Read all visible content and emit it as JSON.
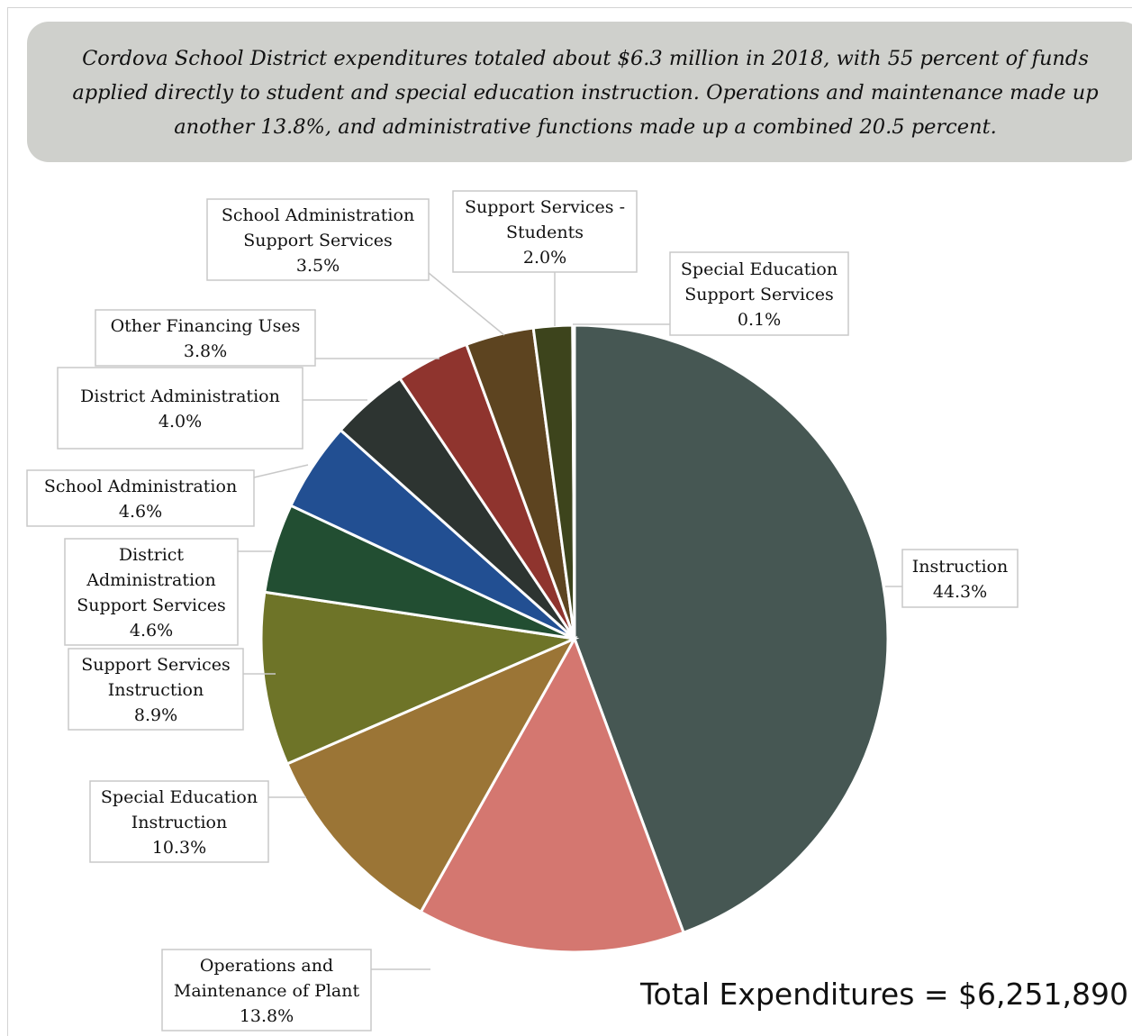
{
  "callout_text": "Cordova School District expenditures totaled about $6.3 million in 2018, with 55 percent of funds applied directly to student and special education instruction. Operations and maintenance made up another 13.8%, and administrative functions made up a combined 20.5 percent.",
  "total_text": "Total Expenditures = $6,251,890",
  "chart_data": {
    "type": "pie",
    "start": "12 o'clock, clockwise",
    "slices": [
      {
        "lines": [
          "Instruction"
        ],
        "value": 44.3,
        "label": "44.3%",
        "color": "#465753"
      },
      {
        "lines": [
          "Operations and",
          "Maintenance of Plant"
        ],
        "value": 13.8,
        "label": "13.8%",
        "color": "#d47770"
      },
      {
        "lines": [
          "Special Education",
          "Instruction"
        ],
        "value": 10.3,
        "label": "10.3%",
        "color": "#9b7536"
      },
      {
        "lines": [
          "Support Services",
          "Instruction"
        ],
        "value": 8.9,
        "label": "8.9%",
        "color": "#6e7428"
      },
      {
        "lines": [
          "District",
          "Administration",
          "Support Services"
        ],
        "value": 4.6,
        "label": "4.6%",
        "color": "#224e32"
      },
      {
        "lines": [
          "School Administration"
        ],
        "value": 4.6,
        "label": "4.6%",
        "color": "#224f92"
      },
      {
        "lines": [
          "District Administration"
        ],
        "value": 4.0,
        "label": "4.0%",
        "color": "#2d3431"
      },
      {
        "lines": [
          "Other Financing Uses"
        ],
        "value": 3.8,
        "label": "3.8%",
        "color": "#8f342e"
      },
      {
        "lines": [
          "School Administration",
          "Support Services"
        ],
        "value": 3.5,
        "label": "3.5%",
        "color": "#5d4420"
      },
      {
        "lines": [
          "Support Services -",
          "Students"
        ],
        "value": 2.0,
        "label": "2.0%",
        "color": "#3d441c"
      },
      {
        "lines": [
          "Special Education",
          "Support Services"
        ],
        "value": 0.1,
        "label": "0.1%",
        "color": "#6a7a2a"
      }
    ]
  }
}
